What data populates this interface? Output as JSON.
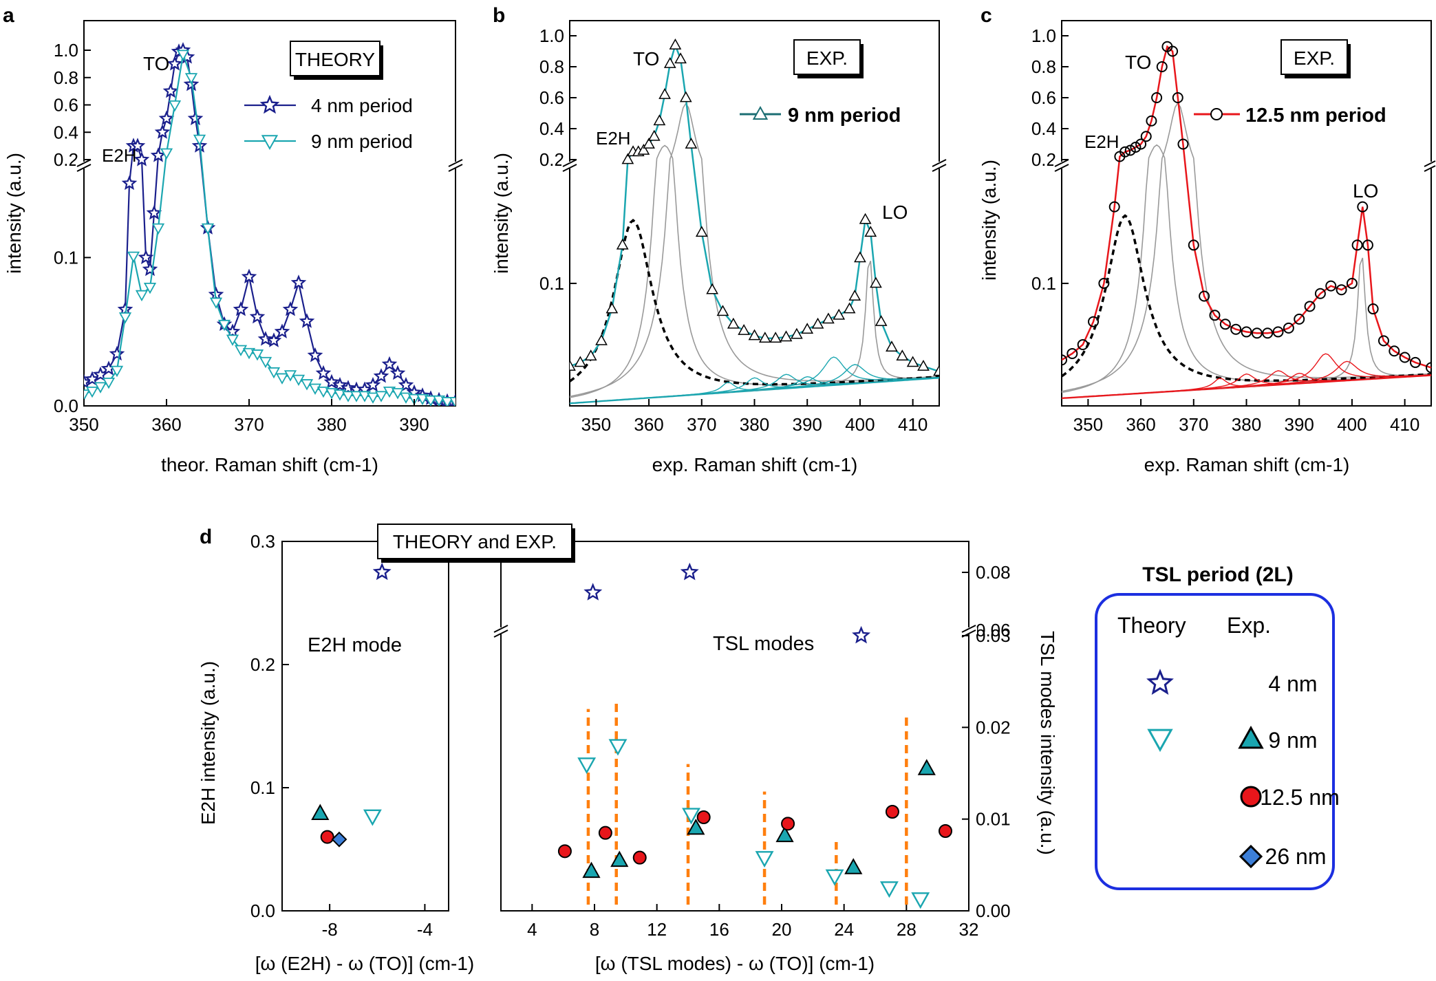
{
  "colors": {
    "theory_4nm": "#1a1f8c",
    "cyan": "#1aa6b0",
    "red": "#e8161b",
    "diamond": "#3c7fd8",
    "orange": "#ff7f0e",
    "blue_text": "#1c2fe0",
    "legend_box": "#1c2fe0"
  },
  "chart_data": [
    {
      "panel": "a",
      "type": "line",
      "box_label": "THEORY",
      "xlabel": "theor. Raman shift (cm-1)",
      "ylabel": "intensity (a.u.)",
      "x_ticks": [
        "350",
        "360",
        "370",
        "380",
        "390"
      ],
      "y_ticks_lower": [
        "0.0",
        "0.1"
      ],
      "y_ticks_upper": [
        "0.2",
        "0.4",
        "0.6",
        "0.8",
        "1.0"
      ],
      "xlim": [
        350,
        395
      ],
      "y_lower_range": [
        0,
        0.16
      ],
      "y_upper_range": [
        0.2,
        1.0
      ],
      "peak_labels": [
        "TO",
        "E2H"
      ],
      "series": [
        {
          "name": "4 nm period",
          "x": [
            350,
            351,
            352,
            353,
            354,
            355,
            355.5,
            356,
            356.5,
            357,
            357.5,
            358,
            358.5,
            359,
            359.5,
            360,
            360.5,
            361,
            361.5,
            362,
            362.5,
            363,
            363.5,
            364,
            365,
            366,
            367,
            368,
            369,
            370,
            371,
            372,
            373,
            374,
            375,
            376,
            377,
            378,
            379,
            380,
            381,
            382,
            383,
            384,
            385,
            386,
            387,
            388,
            389,
            390,
            391,
            392,
            393,
            394,
            395
          ],
          "y": [
            0.016,
            0.018,
            0.021,
            0.025,
            0.035,
            0.065,
            0.15,
            0.3,
            0.3,
            0.2,
            0.1,
            0.092,
            0.13,
            0.23,
            0.4,
            0.5,
            0.7,
            0.9,
            0.99,
            1.0,
            0.95,
            0.75,
            0.5,
            0.3,
            0.12,
            0.075,
            0.055,
            0.05,
            0.065,
            0.087,
            0.06,
            0.045,
            0.044,
            0.05,
            0.065,
            0.083,
            0.057,
            0.034,
            0.022,
            0.016,
            0.014,
            0.012,
            0.011,
            0.011,
            0.014,
            0.02,
            0.028,
            0.022,
            0.014,
            0.009,
            0.007,
            0.005,
            0.004,
            0.003,
            0.003
          ]
        },
        {
          "name": "9 nm period",
          "x": [
            350,
            351,
            352,
            353,
            354,
            355,
            356,
            357,
            358,
            359,
            360,
            361,
            362,
            363,
            364,
            365,
            366,
            367,
            368,
            369,
            370,
            371,
            372,
            373,
            374,
            375,
            376,
            377,
            378,
            379,
            380,
            381,
            382,
            383,
            384,
            385,
            386,
            387,
            388,
            389,
            390,
            391,
            392,
            393,
            394,
            395
          ],
          "y": [
            0.008,
            0.01,
            0.013,
            0.016,
            0.024,
            0.06,
            0.101,
            0.075,
            0.08,
            0.12,
            0.25,
            0.6,
            0.97,
            0.8,
            0.35,
            0.12,
            0.07,
            0.055,
            0.045,
            0.038,
            0.036,
            0.035,
            0.03,
            0.023,
            0.019,
            0.021,
            0.018,
            0.015,
            0.012,
            0.01,
            0.009,
            0.008,
            0.007,
            0.007,
            0.007,
            0.006,
            0.007,
            0.01,
            0.009,
            0.006,
            0.005,
            0.005,
            0.004,
            0.004,
            0.003,
            0.003
          ]
        }
      ]
    },
    {
      "panel": "b",
      "type": "line",
      "box_label": "EXP.",
      "xlabel": "exp. Raman shift (cm-1)",
      "ylabel": "intensity (a.u.)",
      "x_ticks": [
        "350",
        "360",
        "370",
        "380",
        "390",
        "400",
        "410"
      ],
      "y_ticks_lower": [
        "0.1"
      ],
      "y_ticks_upper": [
        "0.2",
        "0.4",
        "0.6",
        "0.8",
        "1.0"
      ],
      "xlim": [
        345,
        415
      ],
      "peak_labels": [
        "TO",
        "E2H",
        "LO"
      ],
      "series": [
        {
          "name": "9 nm period",
          "x": [
            345,
            347,
            349,
            351,
            353,
            355,
            356,
            357,
            358,
            359,
            360,
            361,
            362,
            363,
            364,
            365,
            366,
            367,
            368,
            370,
            372,
            374,
            376,
            378,
            380,
            382,
            384,
            386,
            388,
            390,
            392,
            394,
            396,
            398,
            399,
            400,
            401,
            402,
            403,
            404,
            406,
            408,
            410,
            412,
            415
          ],
          "y": [
            0.035,
            0.038,
            0.043,
            0.055,
            0.08,
            0.13,
            0.2,
            0.25,
            0.25,
            0.26,
            0.3,
            0.35,
            0.45,
            0.62,
            0.82,
            0.94,
            0.85,
            0.6,
            0.3,
            0.14,
            0.095,
            0.078,
            0.068,
            0.063,
            0.059,
            0.057,
            0.057,
            0.058,
            0.06,
            0.064,
            0.068,
            0.072,
            0.075,
            0.08,
            0.09,
            0.12,
            0.15,
            0.14,
            0.1,
            0.07,
            0.05,
            0.043,
            0.038,
            0.035,
            0.031
          ]
        }
      ]
    },
    {
      "panel": "c",
      "type": "line",
      "box_label": "EXP.",
      "xlabel": "exp. Raman shift (cm-1)",
      "ylabel": "intensity (a.u.)",
      "x_ticks": [
        "350",
        "360",
        "370",
        "380",
        "390",
        "400",
        "410"
      ],
      "y_ticks_lower": [
        "0.1"
      ],
      "y_ticks_upper": [
        "0.2",
        "0.4",
        "0.6",
        "0.8",
        "1.0"
      ],
      "xlim": [
        345,
        415
      ],
      "peak_labels": [
        "TO",
        "E2H",
        "LO"
      ],
      "series": [
        {
          "name": "12.5 nm period",
          "x": [
            345,
            347,
            349,
            351,
            353,
            355,
            356,
            357,
            358,
            359,
            360,
            361,
            362,
            363,
            364,
            365,
            366,
            367,
            368,
            370,
            372,
            374,
            376,
            378,
            380,
            382,
            384,
            386,
            388,
            390,
            392,
            394,
            396,
            398,
            400,
            401,
            402,
            403,
            404,
            406,
            408,
            410,
            412,
            415
          ],
          "y": [
            0.04,
            0.045,
            0.052,
            0.07,
            0.1,
            0.16,
            0.22,
            0.25,
            0.26,
            0.28,
            0.3,
            0.35,
            0.45,
            0.6,
            0.8,
            0.93,
            0.9,
            0.6,
            0.3,
            0.13,
            0.09,
            0.075,
            0.068,
            0.064,
            0.062,
            0.061,
            0.061,
            0.062,
            0.065,
            0.072,
            0.082,
            0.092,
            0.098,
            0.095,
            0.1,
            0.13,
            0.16,
            0.13,
            0.08,
            0.055,
            0.047,
            0.042,
            0.038,
            0.034
          ]
        }
      ]
    },
    {
      "panel": "d",
      "type": "scatter",
      "box_label": "THEORY and EXP.",
      "left": {
        "xlabel": "[ω (E2H) - ω (TO)] (cm-1)",
        "ylabel": "E2H intensity (a.u.)",
        "x_ticks": [
          "-8",
          "-4"
        ],
        "y_ticks": [
          "0.0",
          "0.1",
          "0.2",
          "0.3"
        ],
        "xlim": [
          -10,
          -3
        ],
        "ylim": [
          0,
          0.3
        ],
        "annotation": "E2H mode",
        "points": [
          {
            "group": "theory 4 nm",
            "x": -5.8,
            "y": 0.275
          },
          {
            "group": "theory 9 nm",
            "x": -6.2,
            "y": 0.077
          },
          {
            "group": "exp 9 nm",
            "x": -8.4,
            "y": 0.079
          },
          {
            "group": "exp 12.5 nm",
            "x": -8.1,
            "y": 0.06
          },
          {
            "group": "exp 26 nm",
            "x": -7.6,
            "y": 0.058
          }
        ]
      },
      "right": {
        "xlabel": "[ω (TSL modes) - ω (TO)] (cm-1)",
        "ylabel": "TSL modes intensity (a.u.)",
        "x_ticks": [
          "4",
          "8",
          "12",
          "16",
          "20",
          "24",
          "28",
          "32"
        ],
        "y_ticks_lower": [
          "0.00",
          "0.01",
          "0.02",
          "0.03"
        ],
        "y_ticks_upper": [
          "0.06",
          "0.08"
        ],
        "xlim": [
          2,
          32
        ],
        "annotation": "TSL modes",
        "points": [
          {
            "group": "theory 4 nm",
            "x": 7.9,
            "y": 0.073
          },
          {
            "group": "theory 4 nm",
            "x": 14.1,
            "y": 0.08
          },
          {
            "group": "theory 4 nm",
            "x": 25.1,
            "y": 0.03
          },
          {
            "group": "theory 9 nm",
            "x": 7.5,
            "y": 0.016
          },
          {
            "group": "theory 9 nm",
            "x": 9.5,
            "y": 0.018
          },
          {
            "group": "theory 9 nm",
            "x": 14.2,
            "y": 0.0105
          },
          {
            "group": "theory 9 nm",
            "x": 18.9,
            "y": 0.0058
          },
          {
            "group": "theory 9 nm",
            "x": 23.4,
            "y": 0.0038
          },
          {
            "group": "theory 9 nm",
            "x": 26.9,
            "y": 0.0025
          },
          {
            "group": "theory 9 nm",
            "x": 28.9,
            "y": 0.0013
          },
          {
            "group": "exp 9 nm",
            "x": 7.8,
            "y": 0.0043
          },
          {
            "group": "exp 9 nm",
            "x": 9.6,
            "y": 0.0055
          },
          {
            "group": "exp 9 nm",
            "x": 14.5,
            "y": 0.009
          },
          {
            "group": "exp 9 nm",
            "x": 20.2,
            "y": 0.0082
          },
          {
            "group": "exp 9 nm",
            "x": 24.6,
            "y": 0.0047
          },
          {
            "group": "exp 9 nm",
            "x": 29.3,
            "y": 0.0155
          },
          {
            "group": "exp 12.5 nm",
            "x": 6.1,
            "y": 0.0065
          },
          {
            "group": "exp 12.5 nm",
            "x": 8.7,
            "y": 0.0085
          },
          {
            "group": "exp 12.5 nm",
            "x": 10.9,
            "y": 0.0058
          },
          {
            "group": "exp 12.5 nm",
            "x": 15.0,
            "y": 0.0102
          },
          {
            "group": "exp 12.5 nm",
            "x": 20.4,
            "y": 0.0095
          },
          {
            "group": "exp 12.5 nm",
            "x": 27.1,
            "y": 0.0108
          },
          {
            "group": "exp 12.5 nm",
            "x": 30.5,
            "y": 0.0087
          }
        ],
        "orange_lines": [
          {
            "x": 7.6,
            "y_top": 0.022
          },
          {
            "x": 9.4,
            "y_top": 0.023
          },
          {
            "x": 14.0,
            "y_top": 0.016
          },
          {
            "x": 18.9,
            "y_top": 0.013
          },
          {
            "x": 23.5,
            "y_top": 0.0075
          },
          {
            "x": 28.0,
            "y_top": 0.0215
          }
        ]
      },
      "legend": {
        "title": "TSL period (2L)",
        "col_theory": "Theory",
        "col_exp": "Exp.",
        "rows": [
          "4 nm",
          "9 nm",
          "12.5 nm",
          "26 nm"
        ]
      }
    }
  ],
  "panel_letters": [
    "a",
    "b",
    "c",
    "d"
  ]
}
